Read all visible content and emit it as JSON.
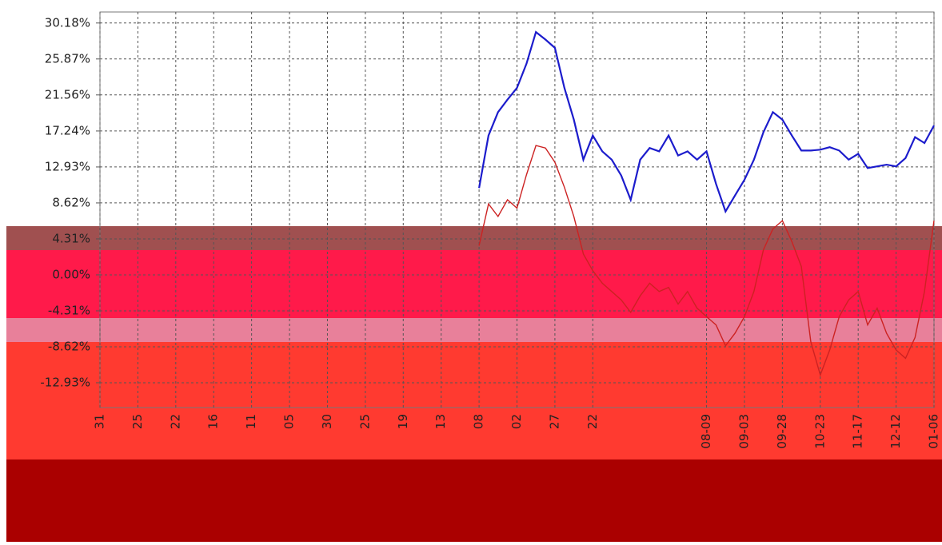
{
  "chart_data": {
    "type": "line",
    "categories": [
      "31",
      null,
      null,
      null,
      "25",
      null,
      null,
      null,
      "22",
      null,
      null,
      null,
      "16",
      null,
      null,
      null,
      "11",
      null,
      null,
      null,
      "05",
      null,
      null,
      null,
      "30",
      null,
      null,
      null,
      "25",
      null,
      null,
      null,
      "19",
      null,
      null,
      null,
      "13",
      null,
      null,
      null,
      "08",
      null,
      null,
      null,
      "02",
      null,
      null,
      null,
      "27",
      null,
      null,
      null,
      "22",
      null,
      null,
      null,
      null,
      null,
      null,
      null,
      null,
      null,
      null,
      null,
      "08-09",
      null,
      null,
      null,
      "09-03",
      null,
      null,
      null,
      "09-28",
      null,
      null,
      null,
      "10-23",
      null,
      null,
      null,
      "11-17",
      null,
      null,
      null,
      "12-12",
      null,
      null,
      null,
      "01-06"
    ],
    "series": [
      {
        "color": "#1c1ccc",
        "values": [
          null,
          null,
          null,
          null,
          null,
          null,
          null,
          null,
          null,
          null,
          null,
          null,
          null,
          null,
          null,
          null,
          null,
          null,
          null,
          null,
          null,
          null,
          null,
          null,
          null,
          null,
          null,
          null,
          null,
          null,
          null,
          null,
          null,
          null,
          null,
          null,
          null,
          null,
          null,
          null,
          10.4,
          16.7,
          19.5,
          21.0,
          22.4,
          25.3,
          29.1,
          28.2,
          27.2,
          22.4,
          18.6,
          13.8,
          16.7,
          14.8,
          13.8,
          11.9,
          9.0,
          13.8,
          15.2,
          14.8,
          16.7,
          14.3,
          14.8,
          13.8,
          14.8,
          10.9,
          7.6,
          9.5,
          11.4,
          13.8,
          17.1,
          19.5,
          18.6,
          16.7,
          14.9,
          14.9,
          15.0,
          15.3,
          14.9,
          13.8,
          14.5,
          12.8,
          13.0,
          13.2,
          13.0,
          14.0,
          16.5,
          15.8,
          17.9
        ]
      },
      {
        "color": "#cc2222",
        "values": [
          null,
          null,
          null,
          null,
          null,
          null,
          null,
          null,
          null,
          null,
          null,
          null,
          null,
          null,
          null,
          null,
          null,
          null,
          null,
          null,
          null,
          null,
          null,
          null,
          null,
          null,
          null,
          null,
          null,
          null,
          null,
          null,
          null,
          null,
          null,
          null,
          null,
          null,
          null,
          null,
          3.5,
          8.5,
          7.0,
          9.0,
          8.0,
          12.0,
          15.5,
          15.2,
          13.5,
          10.5,
          7.0,
          2.5,
          0.5,
          -1.0,
          -2.0,
          -3.0,
          -4.5,
          -2.5,
          -1.0,
          -2.0,
          -1.5,
          -3.5,
          -2.0,
          -4.0,
          -5.0,
          -6.0,
          -8.5,
          -7.0,
          -5.0,
          -2.0,
          3.0,
          5.5,
          6.5,
          4.0,
          1.0,
          -8.0,
          -12.0,
          -9.0,
          -5.0,
          -3.0,
          -2.0,
          -6.0,
          -4.0,
          -7.0,
          -9.0,
          -10.0,
          -7.5,
          -2.0,
          6.5
        ]
      }
    ],
    "ylim": [
      -15.9,
      31.5
    ],
    "yticks": [
      {
        "value": 30.18,
        "label": "30.18%"
      },
      {
        "value": 25.87,
        "label": "25.87%"
      },
      {
        "value": 21.56,
        "label": "21.56%"
      },
      {
        "value": 17.24,
        "label": "17.24%"
      },
      {
        "value": 12.93,
        "label": "12.93%"
      },
      {
        "value": 8.62,
        "label": "8.62%"
      },
      {
        "value": 4.31,
        "label": "4.31%"
      },
      {
        "value": 0,
        "label": "0.00%"
      },
      {
        "value": -4.31,
        "label": "-4.31%"
      },
      {
        "value": -8.62,
        "label": "-8.62%"
      },
      {
        "value": -12.93,
        "label": "-12.93%"
      }
    ],
    "grid": true
  }
}
